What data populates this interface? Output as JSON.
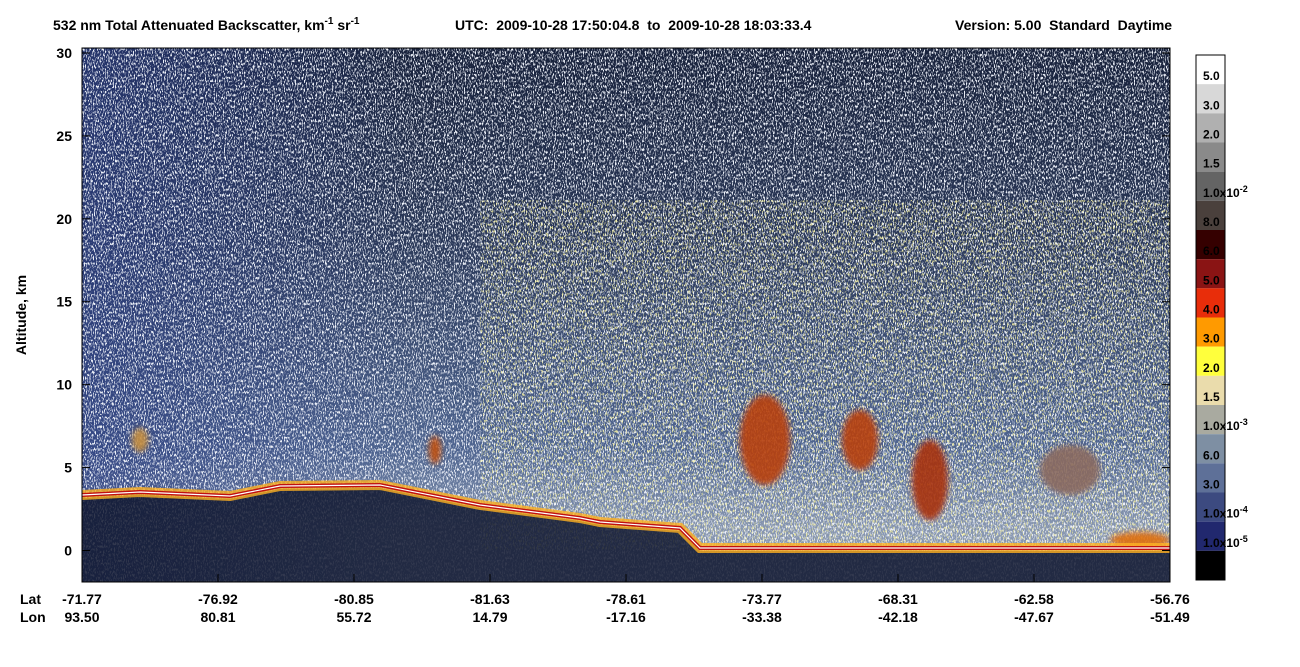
{
  "chart_data": {
    "type": "curtain",
    "title": [
      "532 nm Total Attenuated Backscatter, km",
      "-1",
      " sr",
      "-1"
    ],
    "subtitle": "UTC:  2009-10-28 17:50:04.8  to  2009-10-28 18:03:33.4",
    "version": "Version: 5.00  Standard  Daytime",
    "y_label": "Altitude, km",
    "ylim": [
      -1.9,
      30.3
    ],
    "yticks": [
      0,
      5,
      10,
      15,
      20,
      25,
      30
    ],
    "x_rows": [
      {
        "name": "Lat",
        "labels": [
          "-71.77",
          "-76.92",
          "-80.85",
          "-81.63",
          "-78.61",
          "-73.77",
          "-68.31",
          "-62.58",
          "-56.76"
        ]
      },
      {
        "name": "Lon",
        "labels": [
          "93.50",
          "80.81",
          "55.72",
          "14.79",
          "-17.16",
          "-33.38",
          "-42.18",
          "-47.67",
          "-51.49"
        ]
      }
    ],
    "colorbar": {
      "colors": [
        "#ffffff",
        "#d8d8d8",
        "#b0b0b0",
        "#8a8a8a",
        "#646464",
        "#4a403c",
        "#350000",
        "#8a1414",
        "#e82d0a",
        "#ff9a00",
        "#ffff3c",
        "#eadcac",
        "#a9aaa0",
        "#7e8fa3",
        "#5e7098",
        "#3c4a80",
        "#21286e",
        "#000000"
      ],
      "labels": [
        "5.0",
        "3.0",
        "2.0",
        "1.5",
        {
          "text": "1.0x10",
          "sup": "-2"
        },
        "8.0",
        "6.0",
        "5.0",
        "4.0",
        "3.0",
        "2.0",
        "1.5",
        {
          "text": "1.0x10",
          "sup": "-3"
        },
        "6.0",
        "3.0",
        {
          "text": "1.0x10",
          "sup": "-4"
        },
        {
          "text": "1.0x10",
          "sup": "-5"
        }
      ]
    }
  }
}
